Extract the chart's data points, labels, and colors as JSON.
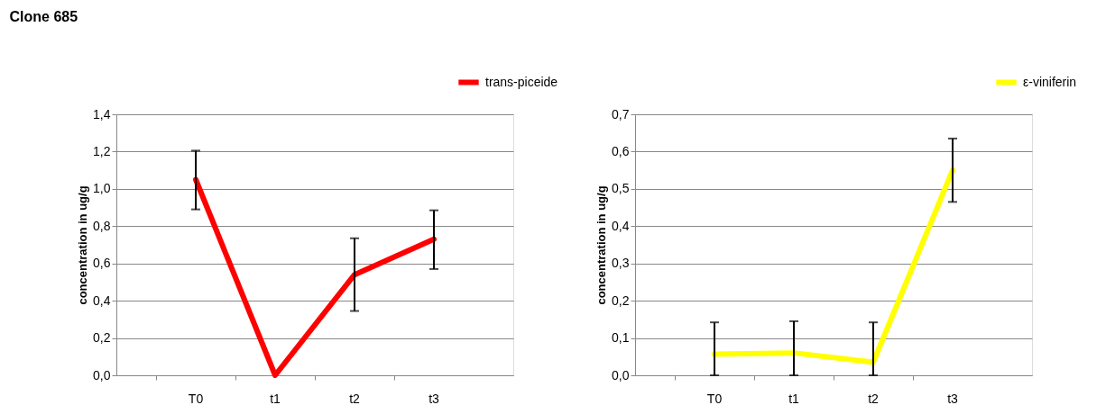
{
  "chart_data": [
    {
      "type": "line",
      "title": "Clone 685",
      "ylabel": "concentration in ug/g",
      "categories": [
        "T0",
        "t1",
        "t2",
        "t3"
      ],
      "series": [
        {
          "name": "trans-piceide",
          "color": "#ff0000",
          "values": [
            1.05,
            0.0,
            0.54,
            0.73
          ],
          "errors": [
            [
              0.89,
              1.205
            ],
            null,
            [
              0.345,
              0.735
            ],
            [
              0.57,
              0.885
            ]
          ]
        }
      ],
      "ylim": [
        0,
        1.4
      ],
      "yticks": [
        {
          "value": 0,
          "label": "0,0"
        },
        {
          "value": 0.2,
          "label": "0,2"
        },
        {
          "value": 0.4,
          "label": "0,4"
        },
        {
          "value": 0.6,
          "label": "0,6"
        },
        {
          "value": 0.8,
          "label": "0,8"
        },
        {
          "value": 1.0,
          "label": "1,0"
        },
        {
          "value": 1.2,
          "label": "1,2"
        },
        {
          "value": 1.4,
          "label": "1,4"
        }
      ],
      "grid": "y",
      "legend": "top right",
      "marker": "none",
      "line_style": "solid"
    },
    {
      "type": "line",
      "ylabel": "concentration in ug/g",
      "categories": [
        "T0",
        "t1",
        "t2",
        "t3"
      ],
      "series": [
        {
          "name": "ε-viniferin",
          "color": "#ffff00",
          "values": [
            0.057,
            0.06,
            0.035,
            0.55
          ],
          "errors": [
            [
              0,
              0.142
            ],
            [
              0,
              0.145
            ],
            [
              0,
              0.142
            ],
            [
              0.465,
              0.635
            ]
          ]
        }
      ],
      "ylim": [
        0,
        0.7
      ],
      "yticks": [
        {
          "value": 0,
          "label": "0,0"
        },
        {
          "value": 0.1,
          "label": "0,1"
        },
        {
          "value": 0.2,
          "label": "0,2"
        },
        {
          "value": 0.3,
          "label": "0,3"
        },
        {
          "value": 0.4,
          "label": "0,4"
        },
        {
          "value": 0.5,
          "label": "0,5"
        },
        {
          "value": 0.6,
          "label": "0,6"
        },
        {
          "value": 0.7,
          "label": "0,7"
        }
      ],
      "grid": "y",
      "legend": "top right",
      "marker": "none",
      "line_style": "solid"
    }
  ]
}
